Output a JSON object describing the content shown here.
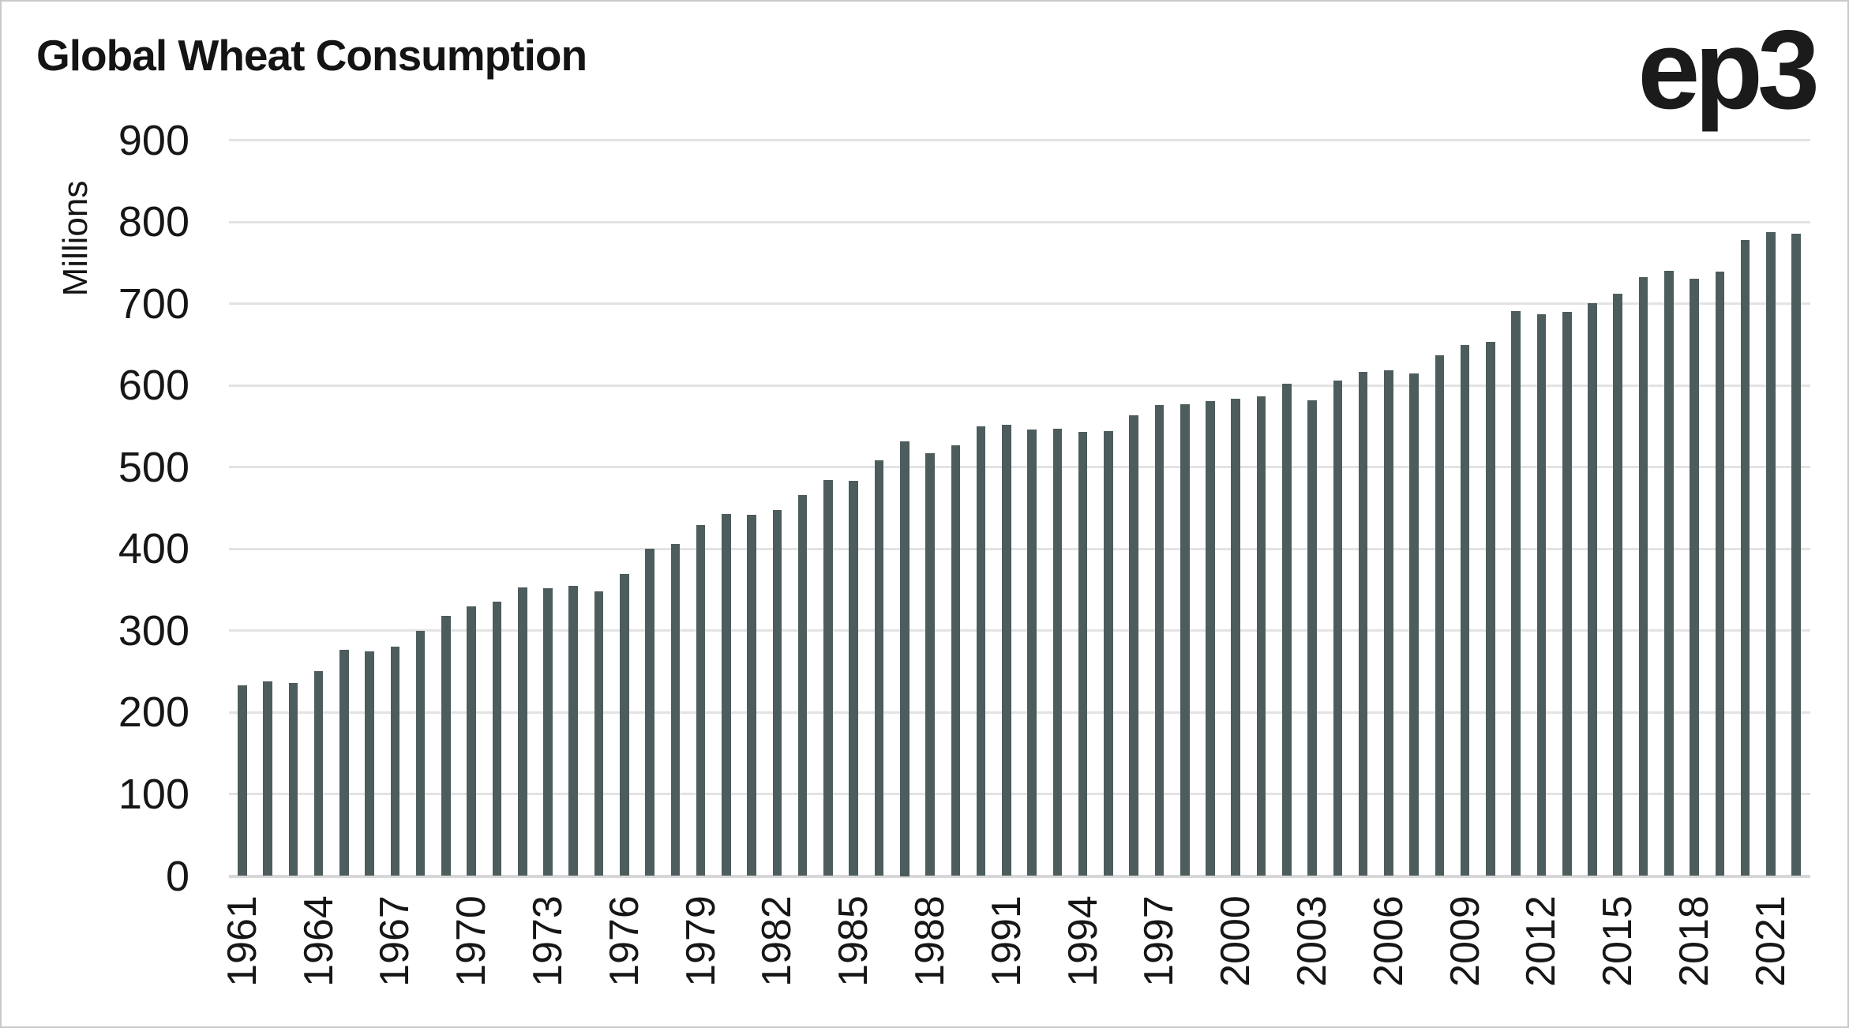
{
  "header": {
    "title": "Global Wheat Consumption",
    "logo": "ep3"
  },
  "chart_data": {
    "type": "bar",
    "title": "Global Wheat Consumption",
    "xlabel": "",
    "ylabel": "Millions",
    "ylim": [
      0,
      900
    ],
    "ytick_step": 100,
    "yticks": [
      0,
      100,
      200,
      300,
      400,
      500,
      600,
      700,
      800,
      900
    ],
    "grid": true,
    "legend": false,
    "bar_color": "#4d5c5c",
    "gridline_color": "#e3e3e3",
    "axis_line_color": "#d7d7d7",
    "text_color": "#161616",
    "background_color": "#ffffff",
    "categories": [
      1961,
      1962,
      1963,
      1964,
      1965,
      1966,
      1967,
      1968,
      1969,
      1970,
      1971,
      1972,
      1973,
      1974,
      1975,
      1976,
      1977,
      1978,
      1979,
      1980,
      1981,
      1982,
      1983,
      1984,
      1985,
      1986,
      1987,
      1988,
      1989,
      1990,
      1991,
      1992,
      1993,
      1994,
      1995,
      1996,
      1997,
      1998,
      1999,
      2000,
      2001,
      2002,
      2003,
      2004,
      2005,
      2006,
      2007,
      2008,
      2009,
      2010,
      2011,
      2012,
      2013,
      2014,
      2015,
      2016,
      2017,
      2018,
      2019,
      2020,
      2021,
      2022
    ],
    "values": [
      233,
      238,
      236,
      251,
      277,
      275,
      281,
      300,
      318,
      330,
      336,
      353,
      352,
      355,
      348,
      369,
      400,
      406,
      429,
      443,
      442,
      448,
      466,
      484,
      483,
      508,
      532,
      517,
      527,
      550,
      552,
      546,
      547,
      543,
      544,
      564,
      576,
      577,
      581,
      584,
      587,
      602,
      582,
      606,
      617,
      619,
      615,
      637,
      649,
      653,
      691,
      687,
      690,
      701,
      712,
      733,
      740,
      731,
      739,
      778,
      788,
      786
    ],
    "xtick_labels": [
      "1961",
      "1964",
      "1967",
      "1970",
      "1973",
      "1976",
      "1979",
      "1982",
      "1985",
      "1988",
      "1991",
      "1994",
      "1997",
      "2000",
      "2003",
      "2006",
      "2009",
      "2012",
      "2015",
      "2018",
      "2021"
    ]
  }
}
